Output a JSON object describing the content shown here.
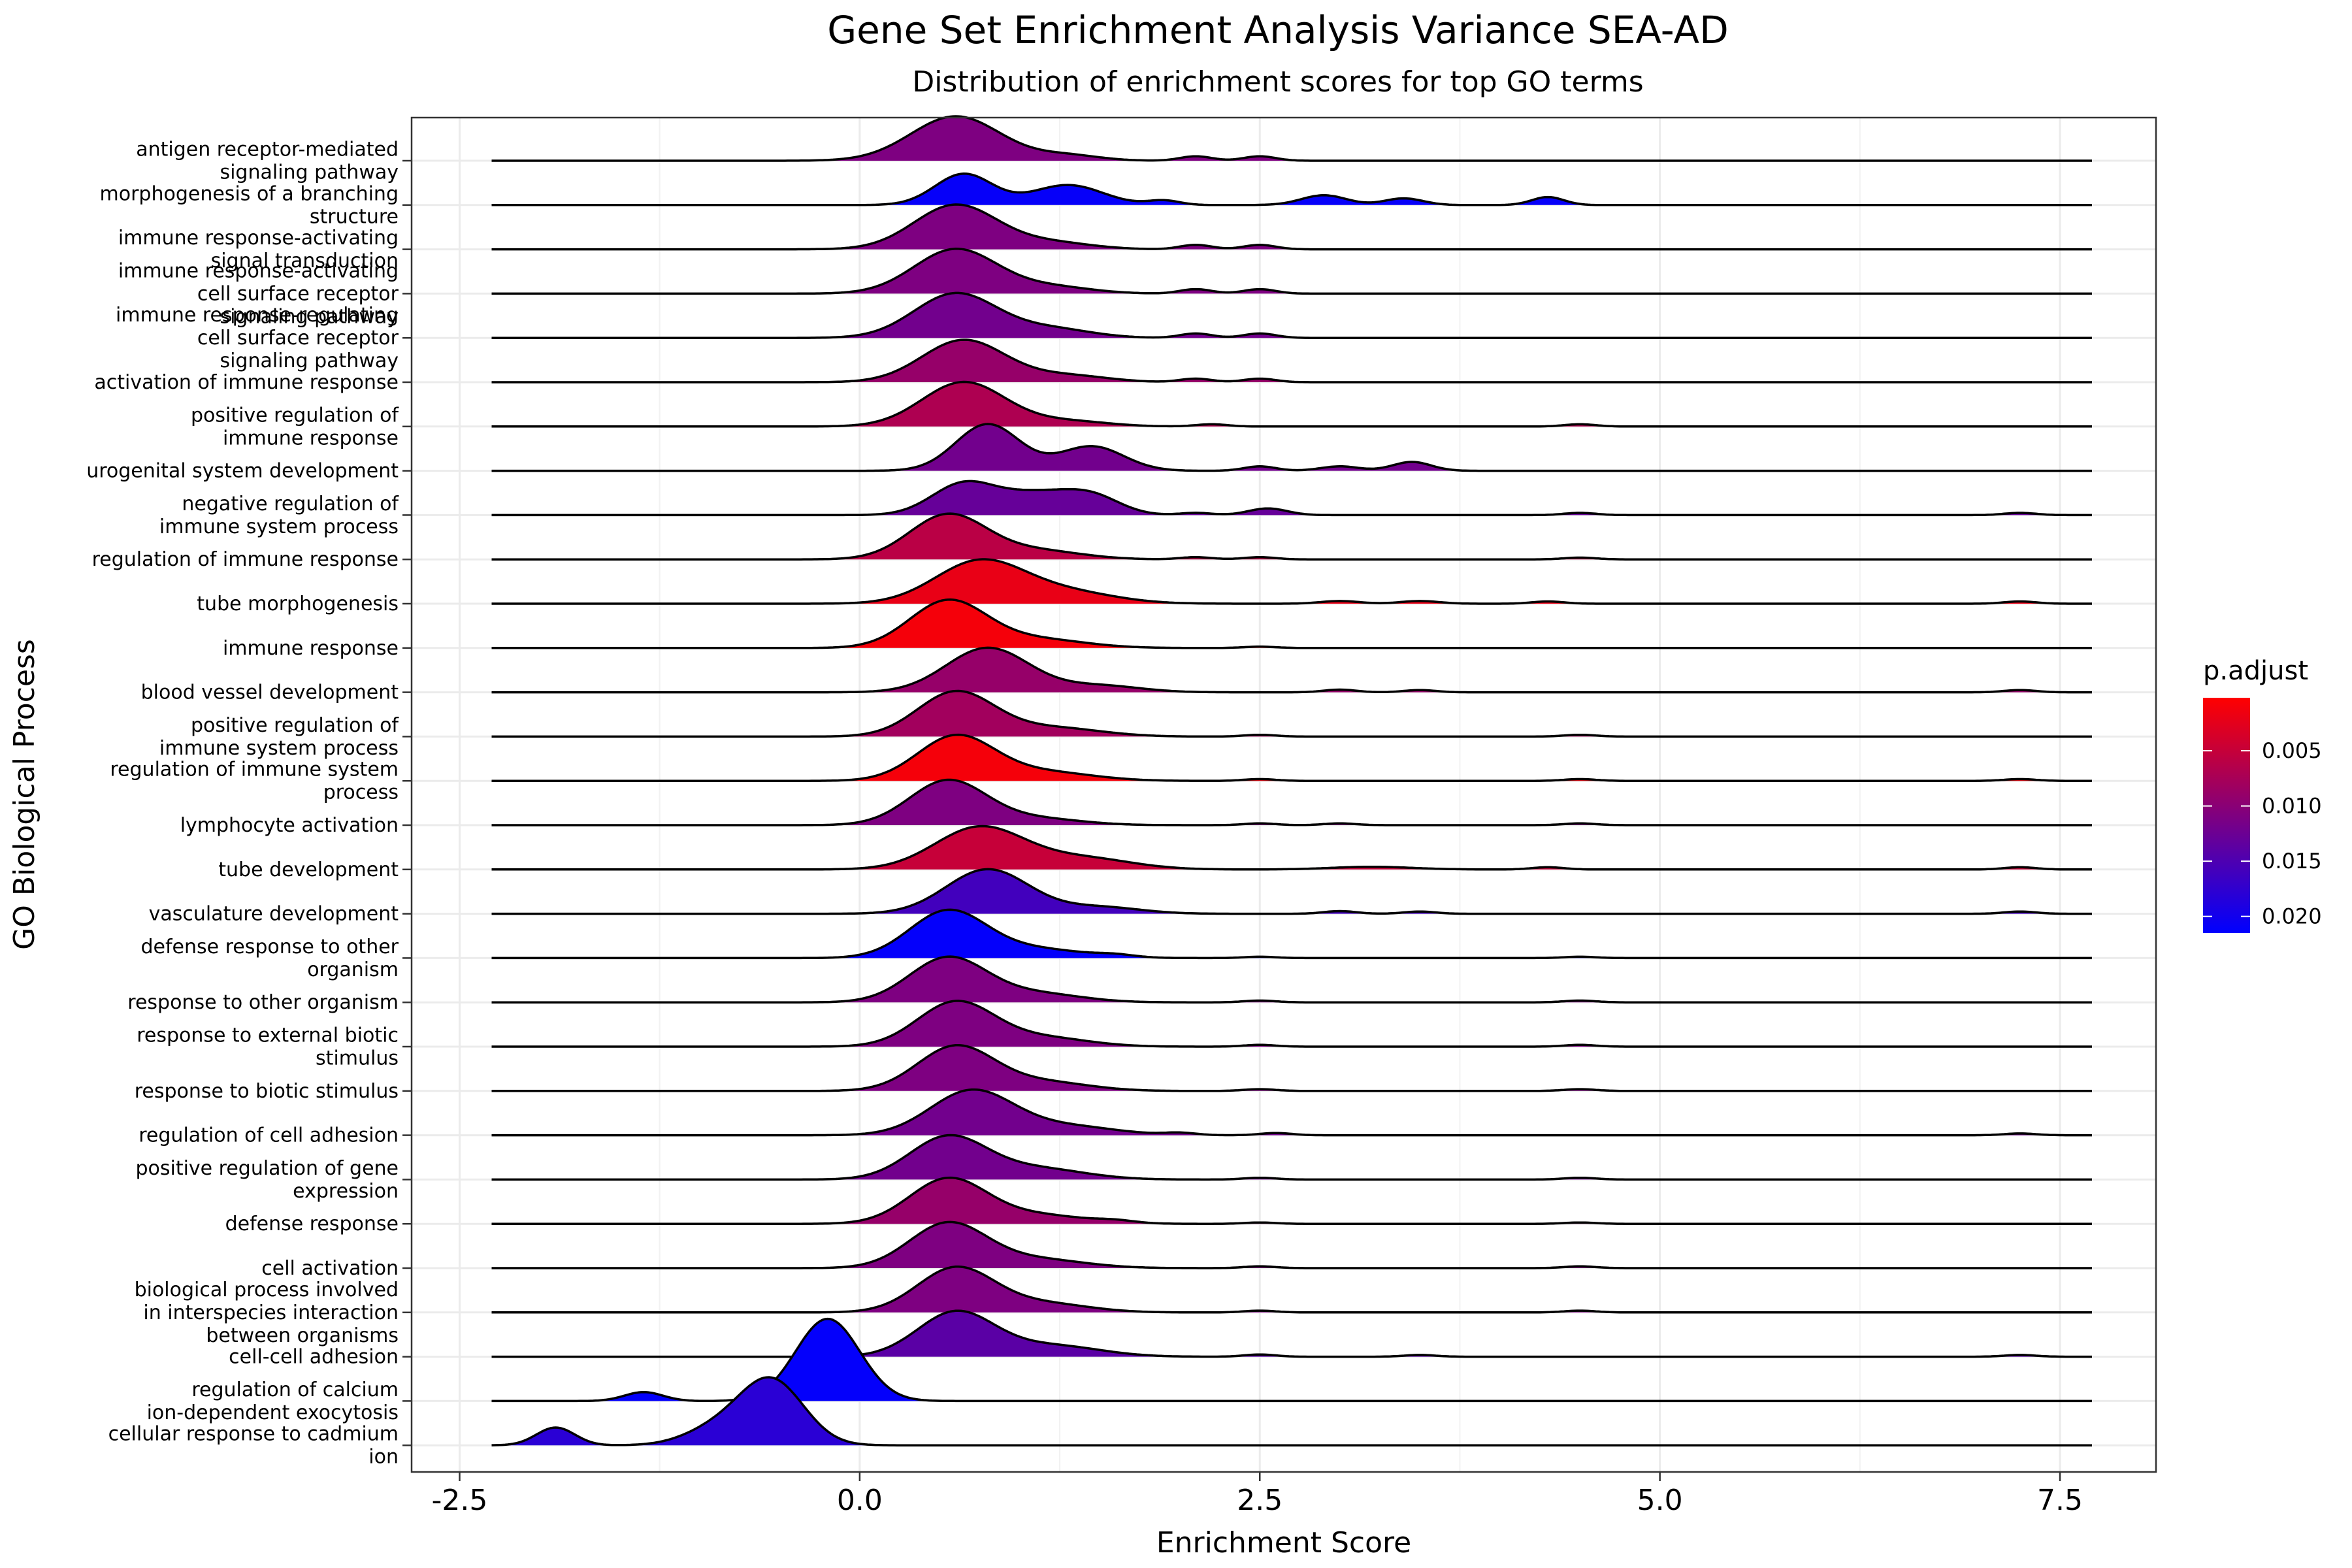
{
  "chart_data": {
    "type": "ridgeline",
    "title": "Gene Set Enrichment Analysis Variance SEA-AD",
    "subtitle": "Distribution of enrichment scores for top GO terms",
    "xlabel": "Enrichment Score",
    "ylabel": "GO Biological Process",
    "xlim": [
      -2.8,
      8.1
    ],
    "x_ticks": [
      "-2.5",
      "0.0",
      "2.5",
      "5.0",
      "7.5"
    ],
    "x_tick_values": [
      -2.5,
      0.0,
      2.5,
      5.0,
      7.5
    ],
    "line_range": [
      -2.3,
      7.7
    ],
    "grid": true,
    "legend": {
      "title": "p.adjust",
      "placement": "right",
      "ticks": [
        "0.005",
        "0.010",
        "0.015",
        "0.020"
      ],
      "tick_values": [
        0.005,
        0.01,
        0.015,
        0.02
      ],
      "range": [
        0.0002,
        0.0215
      ],
      "color_low": "#FF0000",
      "color_high": "#0000FF"
    },
    "terms": [
      {
        "label": "antigen receptor-mediated\nsignaling pathway",
        "p_adjust": 0.011,
        "peaks": [
          [
            0.6,
            1.0,
            0.28
          ],
          [
            1.3,
            0.12,
            0.2
          ],
          [
            2.1,
            0.1,
            0.1
          ],
          [
            2.5,
            0.1,
            0.1
          ]
        ]
      },
      {
        "label": "morphogenesis of a branching\nstructure",
        "p_adjust": 0.021,
        "peaks": [
          [
            0.65,
            0.7,
            0.18
          ],
          [
            1.3,
            0.45,
            0.22
          ],
          [
            1.9,
            0.1,
            0.1
          ],
          [
            2.9,
            0.22,
            0.14
          ],
          [
            3.4,
            0.15,
            0.12
          ],
          [
            4.3,
            0.18,
            0.1
          ]
        ]
      },
      {
        "label": "immune response-activating\nsignal transduction",
        "p_adjust": 0.011,
        "peaks": [
          [
            0.6,
            1.0,
            0.26
          ],
          [
            1.2,
            0.15,
            0.25
          ],
          [
            2.1,
            0.1,
            0.1
          ],
          [
            2.5,
            0.1,
            0.1
          ]
        ]
      },
      {
        "label": "immune response-activating\ncell surface receptor\nsignaling pathway",
        "p_adjust": 0.011,
        "peaks": [
          [
            0.6,
            1.0,
            0.26
          ],
          [
            1.2,
            0.15,
            0.25
          ],
          [
            2.1,
            0.1,
            0.1
          ],
          [
            2.5,
            0.1,
            0.1
          ]
        ]
      },
      {
        "label": "immune response-regulating\ncell surface receptor\nsignaling pathway",
        "p_adjust": 0.012,
        "peaks": [
          [
            0.6,
            1.0,
            0.26
          ],
          [
            1.2,
            0.2,
            0.25
          ],
          [
            2.1,
            0.1,
            0.1
          ],
          [
            2.5,
            0.1,
            0.1
          ]
        ]
      },
      {
        "label": "activation of immune response",
        "p_adjust": 0.009,
        "peaks": [
          [
            0.65,
            0.95,
            0.26
          ],
          [
            1.3,
            0.15,
            0.25
          ],
          [
            2.1,
            0.08,
            0.1
          ],
          [
            2.5,
            0.08,
            0.1
          ]
        ]
      },
      {
        "label": "positive regulation of\nimmune response",
        "p_adjust": 0.007,
        "peaks": [
          [
            0.65,
            1.0,
            0.26
          ],
          [
            1.3,
            0.12,
            0.25
          ],
          [
            2.2,
            0.05,
            0.1
          ],
          [
            4.5,
            0.05,
            0.1
          ]
        ]
      },
      {
        "label": "urogenital system development",
        "p_adjust": 0.012,
        "peaks": [
          [
            0.8,
            1.05,
            0.2
          ],
          [
            1.45,
            0.55,
            0.2
          ],
          [
            2.5,
            0.1,
            0.1
          ],
          [
            3.0,
            0.1,
            0.12
          ],
          [
            3.45,
            0.2,
            0.12
          ]
        ]
      },
      {
        "label": "negative regulation of\nimmune system process",
        "p_adjust": 0.013,
        "peaks": [
          [
            0.65,
            0.7,
            0.2
          ],
          [
            1.1,
            0.45,
            0.22
          ],
          [
            1.45,
            0.4,
            0.18
          ],
          [
            2.1,
            0.05,
            0.1
          ],
          [
            2.55,
            0.15,
            0.12
          ],
          [
            4.5,
            0.05,
            0.1
          ],
          [
            7.25,
            0.05,
            0.1
          ]
        ]
      },
      {
        "label": "regulation of immune response",
        "p_adjust": 0.006,
        "peaks": [
          [
            0.55,
            1.0,
            0.24
          ],
          [
            1.1,
            0.2,
            0.28
          ],
          [
            2.1,
            0.05,
            0.1
          ],
          [
            2.5,
            0.05,
            0.1
          ],
          [
            4.5,
            0.04,
            0.1
          ]
        ]
      },
      {
        "label": "tube morphogenesis",
        "p_adjust": 0.002,
        "peaks": [
          [
            0.75,
            0.95,
            0.28
          ],
          [
            1.3,
            0.25,
            0.3
          ],
          [
            3.0,
            0.06,
            0.12
          ],
          [
            3.5,
            0.06,
            0.12
          ],
          [
            4.3,
            0.05,
            0.1
          ],
          [
            7.25,
            0.05,
            0.1
          ]
        ]
      },
      {
        "label": "immune response",
        "p_adjust": 0.001,
        "peaks": [
          [
            0.55,
            1.05,
            0.24
          ],
          [
            1.1,
            0.2,
            0.3
          ],
          [
            2.5,
            0.03,
            0.1
          ]
        ]
      },
      {
        "label": "blood vessel development",
        "p_adjust": 0.009,
        "peaks": [
          [
            0.8,
            1.0,
            0.26
          ],
          [
            1.5,
            0.15,
            0.25
          ],
          [
            3.0,
            0.06,
            0.1
          ],
          [
            3.5,
            0.05,
            0.1
          ],
          [
            7.25,
            0.05,
            0.1
          ]
        ]
      },
      {
        "label": "positive regulation of\nimmune system process",
        "p_adjust": 0.008,
        "peaks": [
          [
            0.6,
            1.0,
            0.24
          ],
          [
            1.2,
            0.2,
            0.3
          ],
          [
            2.5,
            0.04,
            0.1
          ],
          [
            4.5,
            0.04,
            0.1
          ]
        ]
      },
      {
        "label": "regulation of immune system\nprocess",
        "p_adjust": 0.001,
        "peaks": [
          [
            0.6,
            1.0,
            0.24
          ],
          [
            1.15,
            0.2,
            0.3
          ],
          [
            2.5,
            0.04,
            0.1
          ],
          [
            4.5,
            0.04,
            0.1
          ],
          [
            7.25,
            0.04,
            0.1
          ]
        ]
      },
      {
        "label": "lymphocyte activation",
        "p_adjust": 0.011,
        "peaks": [
          [
            0.55,
            1.0,
            0.24
          ],
          [
            1.1,
            0.15,
            0.28
          ],
          [
            2.5,
            0.04,
            0.1
          ],
          [
            3.0,
            0.04,
            0.1
          ],
          [
            4.5,
            0.04,
            0.1
          ]
        ]
      },
      {
        "label": "tube development",
        "p_adjust": 0.005,
        "peaks": [
          [
            0.75,
            0.95,
            0.28
          ],
          [
            1.4,
            0.25,
            0.3
          ],
          [
            3.2,
            0.06,
            0.25
          ],
          [
            4.3,
            0.05,
            0.1
          ],
          [
            7.25,
            0.05,
            0.1
          ]
        ]
      },
      {
        "label": "vasculature development",
        "p_adjust": 0.016,
        "peaks": [
          [
            0.8,
            1.0,
            0.26
          ],
          [
            1.5,
            0.15,
            0.25
          ],
          [
            3.0,
            0.06,
            0.1
          ],
          [
            3.5,
            0.05,
            0.1
          ],
          [
            7.25,
            0.05,
            0.1
          ]
        ]
      },
      {
        "label": "defense response to other\norganism",
        "p_adjust": 0.0212,
        "peaks": [
          [
            0.55,
            1.05,
            0.24
          ],
          [
            1.1,
            0.2,
            0.3
          ],
          [
            1.6,
            0.05,
            0.12
          ],
          [
            2.5,
            0.03,
            0.1
          ],
          [
            4.5,
            0.03,
            0.1
          ]
        ]
      },
      {
        "label": "response to other organism",
        "p_adjust": 0.011,
        "peaks": [
          [
            0.55,
            1.0,
            0.24
          ],
          [
            1.1,
            0.2,
            0.28
          ],
          [
            2.5,
            0.04,
            0.1
          ],
          [
            4.5,
            0.04,
            0.1
          ]
        ]
      },
      {
        "label": "response to external biotic\nstimulus",
        "p_adjust": 0.011,
        "peaks": [
          [
            0.6,
            1.0,
            0.24
          ],
          [
            1.15,
            0.2,
            0.28
          ],
          [
            2.5,
            0.04,
            0.1
          ],
          [
            4.5,
            0.04,
            0.1
          ]
        ]
      },
      {
        "label": "response to biotic stimulus",
        "p_adjust": 0.011,
        "peaks": [
          [
            0.6,
            1.0,
            0.24
          ],
          [
            1.15,
            0.2,
            0.28
          ],
          [
            2.5,
            0.04,
            0.1
          ],
          [
            4.5,
            0.04,
            0.1
          ]
        ]
      },
      {
        "label": "regulation of cell adhesion",
        "p_adjust": 0.012,
        "peaks": [
          [
            0.7,
            1.0,
            0.26
          ],
          [
            1.3,
            0.2,
            0.3
          ],
          [
            2.0,
            0.05,
            0.1
          ],
          [
            2.6,
            0.05,
            0.1
          ],
          [
            7.25,
            0.04,
            0.1
          ]
        ]
      },
      {
        "label": "positive regulation of gene\nexpression",
        "p_adjust": 0.012,
        "peaks": [
          [
            0.55,
            0.95,
            0.24
          ],
          [
            1.1,
            0.25,
            0.3
          ],
          [
            2.5,
            0.04,
            0.1
          ],
          [
            4.5,
            0.04,
            0.1
          ]
        ]
      },
      {
        "label": "defense response",
        "p_adjust": 0.009,
        "peaks": [
          [
            0.55,
            1.0,
            0.24
          ],
          [
            1.1,
            0.2,
            0.3
          ],
          [
            1.6,
            0.05,
            0.12
          ],
          [
            2.5,
            0.03,
            0.1
          ],
          [
            4.5,
            0.03,
            0.1
          ]
        ]
      },
      {
        "label": "cell activation",
        "p_adjust": 0.011,
        "peaks": [
          [
            0.55,
            1.0,
            0.24
          ],
          [
            1.1,
            0.2,
            0.3
          ],
          [
            2.5,
            0.04,
            0.1
          ],
          [
            4.5,
            0.04,
            0.1
          ]
        ]
      },
      {
        "label": "biological process involved\nin interspecies interaction\nbetween organisms",
        "p_adjust": 0.011,
        "peaks": [
          [
            0.6,
            1.0,
            0.24
          ],
          [
            1.15,
            0.2,
            0.28
          ],
          [
            2.5,
            0.04,
            0.1
          ],
          [
            4.5,
            0.04,
            0.1
          ]
        ]
      },
      {
        "label": "cell-cell adhesion",
        "p_adjust": 0.014,
        "peaks": [
          [
            0.6,
            1.0,
            0.24
          ],
          [
            1.2,
            0.25,
            0.3
          ],
          [
            2.5,
            0.05,
            0.1
          ],
          [
            3.5,
            0.04,
            0.1
          ],
          [
            7.25,
            0.04,
            0.1
          ]
        ]
      },
      {
        "label": "regulation of calcium\nion-dependent exocytosis",
        "p_adjust": 0.0212,
        "peaks": [
          [
            -0.2,
            1.85,
            0.2
          ],
          [
            -1.35,
            0.2,
            0.12
          ]
        ]
      },
      {
        "label": "cellular response to cadmium\nion",
        "p_adjust": 0.018,
        "peaks": [
          [
            -0.55,
            1.45,
            0.2
          ],
          [
            -0.9,
            0.35,
            0.2
          ],
          [
            -1.9,
            0.4,
            0.12
          ]
        ]
      }
    ]
  }
}
